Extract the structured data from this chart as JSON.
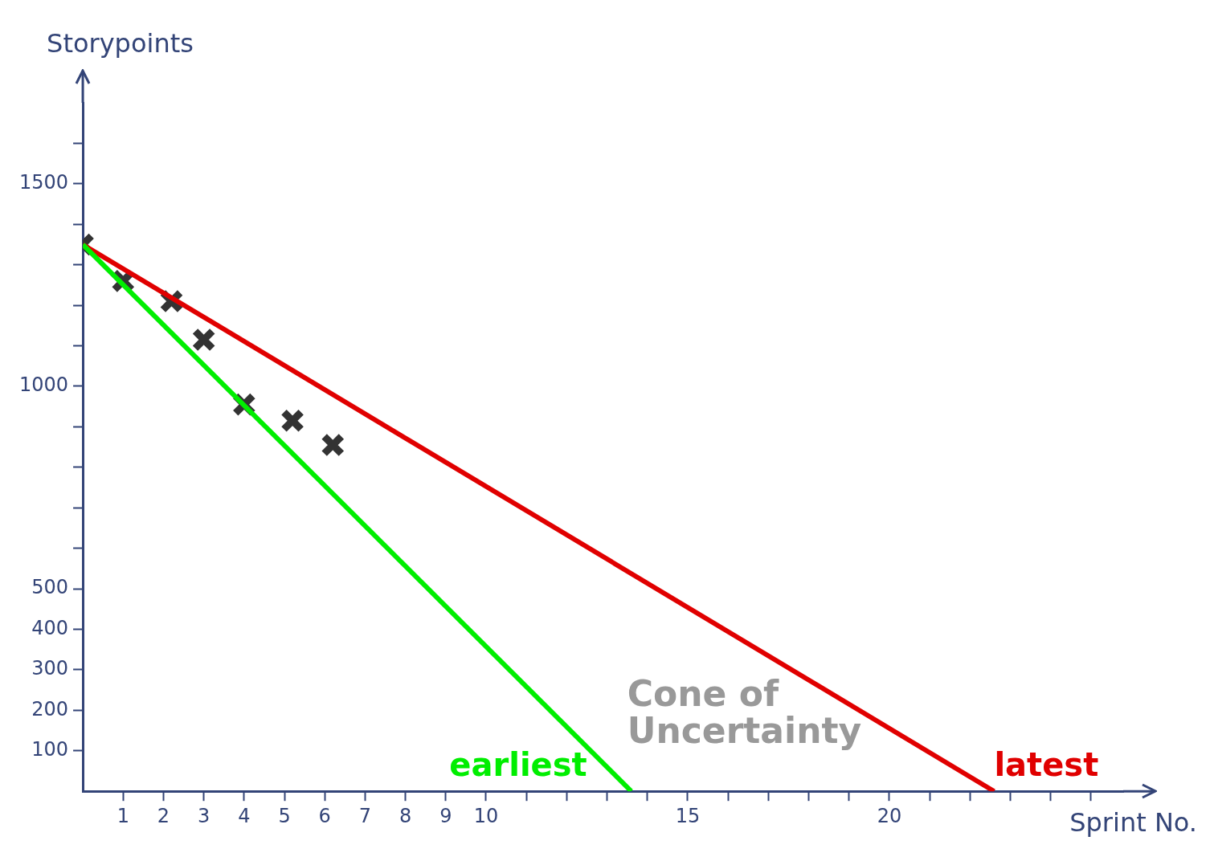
{
  "chart_data": {
    "type": "line",
    "xlabel": "Sprint No.",
    "ylabel": "Storypoints",
    "annotations": [
      "Cone of Uncertainty"
    ],
    "xlim": [
      0,
      25.8
    ],
    "ylim": [
      0,
      1700
    ],
    "xticks": [
      1,
      2,
      3,
      4,
      5,
      6,
      7,
      8,
      9,
      10,
      {
        "value": 11,
        "label": null
      },
      {
        "value": 12,
        "label": null
      },
      {
        "value": 13,
        "label": null
      },
      {
        "value": 14,
        "label": null
      },
      15,
      {
        "value": 16,
        "label": null
      },
      {
        "value": 17,
        "label": null
      },
      {
        "value": 18,
        "label": null
      },
      {
        "value": 19,
        "label": null
      },
      20,
      {
        "value": 21,
        "label": null
      },
      {
        "value": 22,
        "label": null
      },
      {
        "value": 23,
        "label": null
      },
      {
        "value": 24,
        "label": null
      },
      {
        "value": 25,
        "label": null
      }
    ],
    "yticks": [
      100,
      200,
      300,
      400,
      500,
      {
        "value": 600,
        "label": null
      },
      {
        "value": 700,
        "label": null
      },
      {
        "value": 800,
        "label": null
      },
      {
        "value": 900,
        "label": null
      },
      1000,
      {
        "value": 1100,
        "label": null
      },
      {
        "value": 1200,
        "label": null
      },
      {
        "value": 1300,
        "label": null
      },
      {
        "value": 1400,
        "label": null
      },
      1500,
      {
        "value": 1600,
        "label": null
      }
    ],
    "series": [
      {
        "name": "earliest",
        "type": "line",
        "color": "#00ee00",
        "x": [
          0,
          13.6
        ],
        "values": [
          1350,
          0
        ]
      },
      {
        "name": "latest",
        "type": "line",
        "color": "#e00000",
        "x": [
          0,
          22.6
        ],
        "values": [
          1350,
          0
        ]
      },
      {
        "type": "scatter",
        "color": "#333333",
        "x": [
          0,
          1,
          2.2,
          3,
          4,
          5.2,
          6.2
        ],
        "values": [
          1350,
          1260,
          1210,
          1115,
          955,
          915,
          855
        ],
        "marker": "cross"
      }
    ]
  }
}
